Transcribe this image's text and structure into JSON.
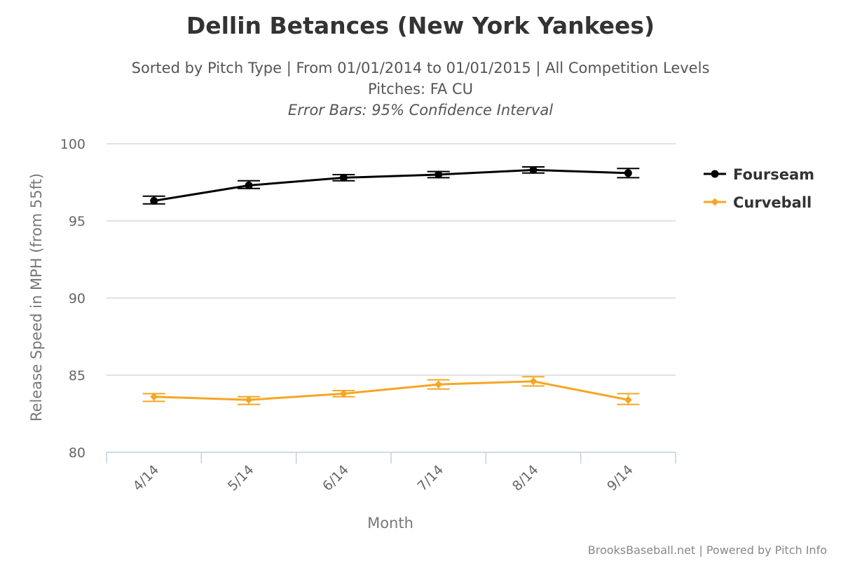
{
  "chart_data": {
    "type": "line",
    "title": "Dellin Betances (New York Yankees)",
    "subtitle_lines": [
      "Sorted by Pitch Type | From 01/01/2014 to 01/01/2015 | All Competition Levels",
      "Pitches: FA CU",
      "Error Bars: 95% Confidence Interval"
    ],
    "xlabel": "Month",
    "ylabel": "Release Speed in MPH (from 55ft)",
    "categories": [
      "4/14",
      "5/14",
      "6/14",
      "7/14",
      "8/14",
      "9/14"
    ],
    "ylim": [
      80,
      100
    ],
    "yticks": [
      "80",
      "85",
      "90",
      "95",
      "100"
    ],
    "grid": true,
    "legend_position": "right",
    "series": [
      {
        "name": "Fourseam",
        "color": "#000000",
        "marker": "circle",
        "values": [
          96.3,
          97.3,
          97.8,
          98.0,
          98.3,
          98.1
        ],
        "error_low": [
          96.1,
          97.1,
          97.6,
          97.8,
          98.1,
          97.8
        ],
        "error_high": [
          96.6,
          97.6,
          98.0,
          98.2,
          98.5,
          98.4
        ]
      },
      {
        "name": "Curveball",
        "color": "#f5a623",
        "marker": "diamond",
        "values": [
          83.6,
          83.4,
          83.8,
          84.4,
          84.6,
          83.4
        ],
        "error_low": [
          83.3,
          83.1,
          83.6,
          84.1,
          84.3,
          83.1
        ],
        "error_high": [
          83.8,
          83.6,
          84.0,
          84.7,
          84.9,
          83.8
        ]
      }
    ]
  },
  "credits": "BrooksBaseball.net | Powered by Pitch Info"
}
